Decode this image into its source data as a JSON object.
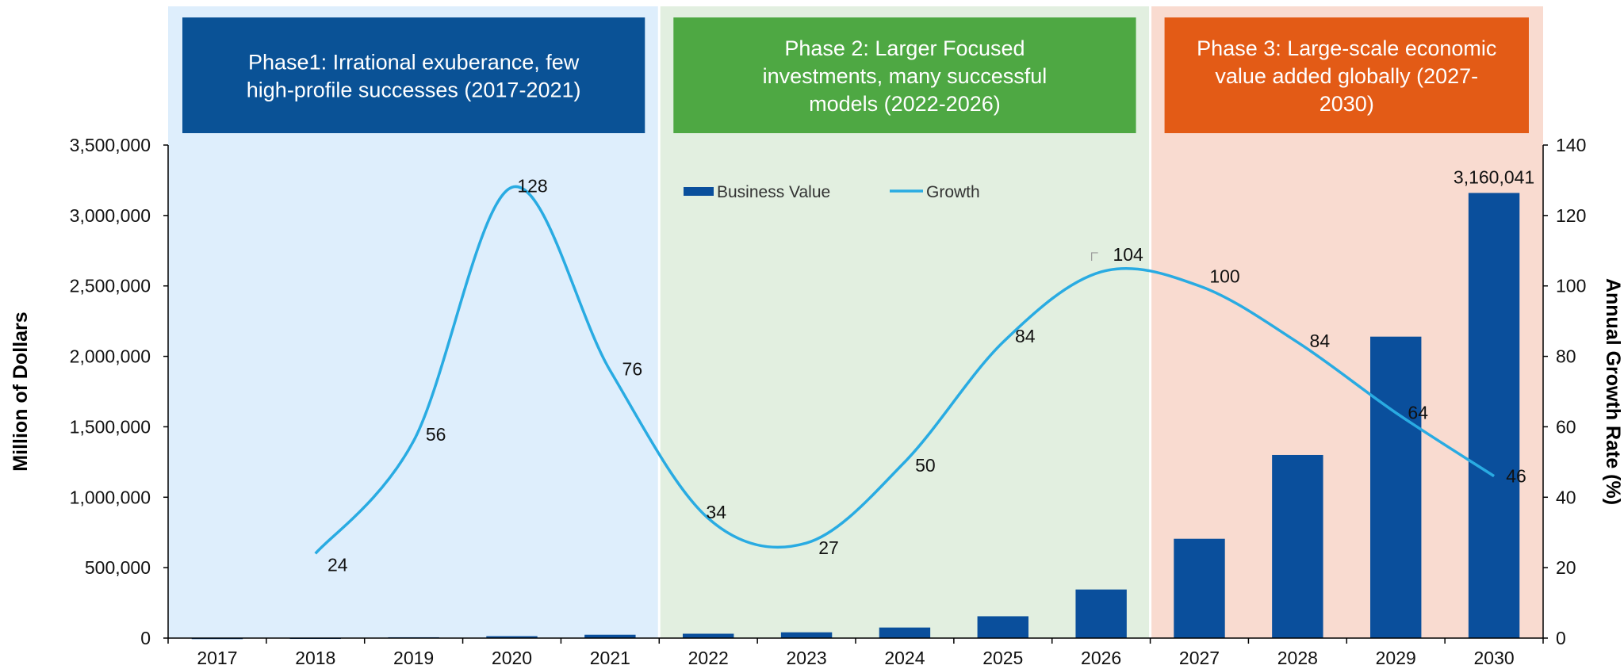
{
  "chart_data": {
    "type": "bar",
    "categories": [
      "2017",
      "2018",
      "2019",
      "2020",
      "2021",
      "2022",
      "2023",
      "2024",
      "2025",
      "2026",
      "2027",
      "2028",
      "2029",
      "2030"
    ],
    "series": [
      {
        "name": "Business Value",
        "type": "bar",
        "axis": "left",
        "values": [
          1200,
          2600,
          5900,
          13500,
          24000,
          31000,
          41000,
          75000,
          155000,
          345000,
          705000,
          1300000,
          2140000,
          3160041
        ],
        "labels": [
          "",
          "",
          "",
          "",
          "",
          "",
          "",
          "",
          "",
          "",
          "",
          "",
          "",
          "3,160,041"
        ]
      },
      {
        "name": "Growth",
        "type": "line",
        "axis": "right",
        "x": [
          "2018",
          "2019",
          "2020",
          "2021",
          "2022",
          "2023",
          "2024",
          "2025",
          "2026",
          "2027",
          "2028",
          "2029",
          "2030"
        ],
        "values": [
          24,
          56,
          128,
          76,
          34,
          27,
          50,
          84,
          104,
          100,
          84,
          64,
          46
        ],
        "labels": [
          "24",
          "56",
          "128",
          "76",
          "34",
          "27",
          "50",
          "84",
          "104",
          "100",
          "84",
          "64",
          "46"
        ]
      }
    ],
    "ylabel": "Million of Dollars",
    "y2label": "Annual Growth Rate (%)",
    "ylim": [
      0,
      3500000
    ],
    "y2lim": [
      0,
      140
    ],
    "yticks": [
      "0",
      "500,000",
      "1,000,000",
      "1,500,000",
      "2,000,000",
      "2,500,000",
      "3,000,000",
      "3,500,000"
    ],
    "y2ticks": [
      "0",
      "20",
      "40",
      "60",
      "80",
      "100",
      "120",
      "140"
    ],
    "grid": false,
    "legend": "top-center",
    "phases": [
      {
        "label_lines": [
          "Phase1: Irrational exuberance, few",
          "high-profile successes (2017-2021)"
        ],
        "start": "2017",
        "end": "2021",
        "band_color": "#deeefc",
        "box_color": "#0a5296"
      },
      {
        "label_lines": [
          "Phase 2: Larger Focused",
          "investments, many successful",
          "models (2022-2026)"
        ],
        "start": "2022",
        "end": "2026",
        "band_color": "#e2efe0",
        "box_color": "#4ea843"
      },
      {
        "label_lines": [
          "Phase 3: Large-scale economic",
          "value added globally (2027-",
          "2030)"
        ],
        "start": "2027",
        "end": "2030",
        "band_color": "#f9dbd0",
        "box_color": "#e35b16"
      }
    ],
    "colors": {
      "bar": "#0a4f9c",
      "line": "#29abe2",
      "axis": "#000000",
      "tick_text": "#111111"
    }
  }
}
